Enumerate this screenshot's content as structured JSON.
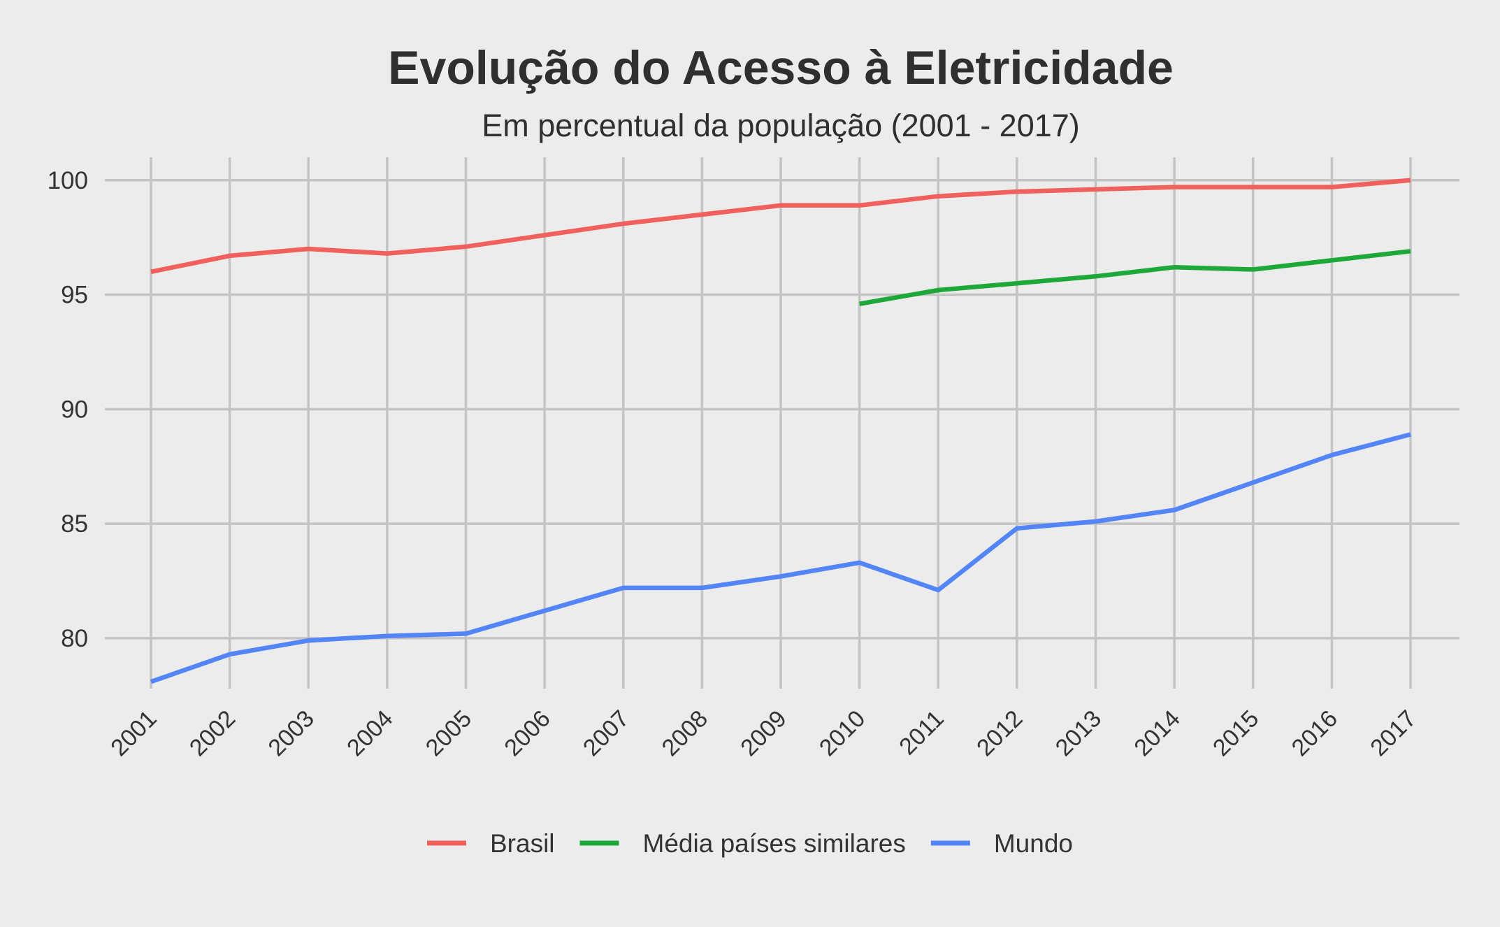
{
  "chart_data": {
    "type": "line",
    "title": "Evolução do Acesso à Eletricidade",
    "subtitle": "Em percentual da população (2001 - 2017)",
    "xlabel": "",
    "ylabel": "",
    "x": [
      2001,
      2002,
      2003,
      2004,
      2005,
      2006,
      2007,
      2008,
      2009,
      2010,
      2011,
      2012,
      2013,
      2014,
      2015,
      2016,
      2017
    ],
    "xlim": [
      2001,
      2017
    ],
    "ylim": [
      77.8,
      101
    ],
    "yticks": [
      80,
      85,
      90,
      95,
      100
    ],
    "grid": true,
    "legend_position": "bottom",
    "series": [
      {
        "name": "Brasil",
        "color": "#f0605d",
        "values": [
          96.0,
          96.7,
          97.0,
          96.8,
          97.1,
          97.6,
          98.1,
          98.5,
          98.9,
          98.9,
          99.3,
          99.5,
          99.6,
          99.7,
          99.7,
          99.7,
          100.0
        ]
      },
      {
        "name": "Média países similares",
        "color": "#1fa83a",
        "values": [
          null,
          null,
          null,
          null,
          null,
          null,
          null,
          null,
          null,
          94.6,
          95.2,
          95.5,
          95.8,
          96.2,
          96.1,
          96.5,
          96.9
        ]
      },
      {
        "name": "Mundo",
        "color": "#5385f7",
        "values": [
          78.1,
          79.3,
          79.9,
          80.1,
          80.2,
          81.2,
          82.2,
          82.2,
          82.7,
          83.3,
          82.1,
          84.8,
          85.1,
          85.6,
          86.8,
          88.0,
          88.9
        ]
      }
    ]
  }
}
